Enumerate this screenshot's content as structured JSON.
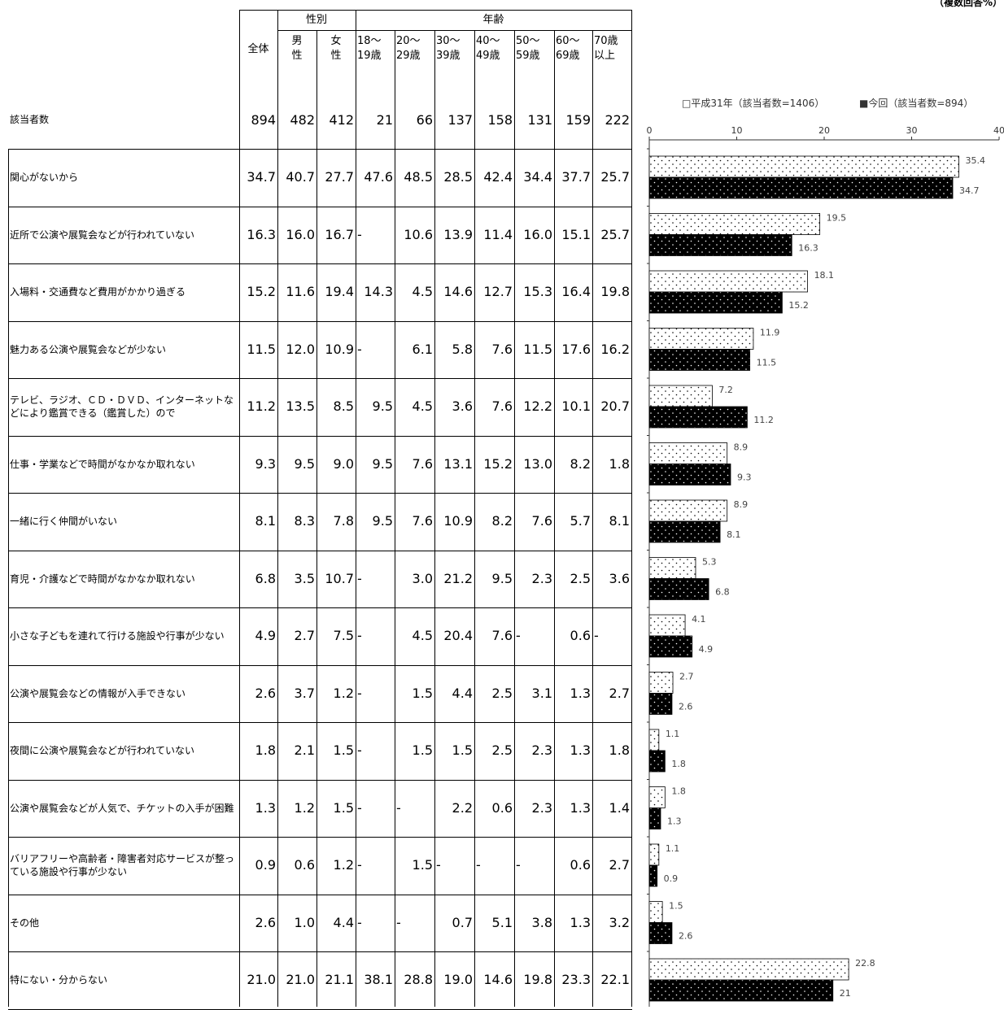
{
  "note": "（複数回答%）",
  "table": {
    "header_all": "全体",
    "group_gender": "性別",
    "group_age": "年齢",
    "columns": [
      {
        "top": "男",
        "bottom": "性"
      },
      {
        "top": "女",
        "bottom": "性"
      },
      {
        "top": "18～",
        "bottom": "19歳"
      },
      {
        "top": "20～",
        "bottom": "29歳"
      },
      {
        "top": "30～",
        "bottom": "39歳"
      },
      {
        "top": "40～",
        "bottom": "49歳"
      },
      {
        "top": "50～",
        "bottom": "59歳"
      },
      {
        "top": "60～",
        "bottom": "69歳"
      },
      {
        "top": "70歳",
        "bottom": "以上"
      }
    ],
    "count_label": "該当者数",
    "counts": [
      "894",
      "482",
      "412",
      "21",
      "66",
      "137",
      "158",
      "131",
      "159",
      "222"
    ],
    "rows": [
      {
        "label": "関心がないから",
        "values": [
          "34.7",
          "40.7",
          "27.7",
          "47.6",
          "48.5",
          "28.5",
          "42.4",
          "34.4",
          "37.7",
          "25.7"
        ]
      },
      {
        "label": "近所で公演や展覧会などが行われていない",
        "values": [
          "16.3",
          "16.0",
          "16.7",
          "-",
          "10.6",
          "13.9",
          "11.4",
          "16.0",
          "15.1",
          "25.7"
        ]
      },
      {
        "label": "入場料・交通費など費用がかかり過ぎる",
        "values": [
          "15.2",
          "11.6",
          "19.4",
          "14.3",
          "4.5",
          "14.6",
          "12.7",
          "15.3",
          "16.4",
          "19.8"
        ]
      },
      {
        "label": "魅力ある公演や展覧会などが少ない",
        "values": [
          "11.5",
          "12.0",
          "10.9",
          "-",
          "6.1",
          "5.8",
          "7.6",
          "11.5",
          "17.6",
          "16.2"
        ]
      },
      {
        "label": "テレビ、ラジオ、ＣＤ・ＤＶＤ、インターネットなどにより鑑賞できる（鑑賞した）ので",
        "values": [
          "11.2",
          "13.5",
          "8.5",
          "9.5",
          "4.5",
          "3.6",
          "7.6",
          "12.2",
          "10.1",
          "20.7"
        ]
      },
      {
        "label": "仕事・学業などで時間がなかなか取れない",
        "values": [
          "9.3",
          "9.5",
          "9.0",
          "9.5",
          "7.6",
          "13.1",
          "15.2",
          "13.0",
          "8.2",
          "1.8"
        ]
      },
      {
        "label": "一緒に行く仲間がいない",
        "values": [
          "8.1",
          "8.3",
          "7.8",
          "9.5",
          "7.6",
          "10.9",
          "8.2",
          "7.6",
          "5.7",
          "8.1"
        ]
      },
      {
        "label": "育児・介護などで時間がなかなか取れない",
        "values": [
          "6.8",
          "3.5",
          "10.7",
          "-",
          "3.0",
          "21.2",
          "9.5",
          "2.3",
          "2.5",
          "3.6"
        ]
      },
      {
        "label": "小さな子どもを連れて行ける施設や行事が少ない",
        "values": [
          "4.9",
          "2.7",
          "7.5",
          "-",
          "4.5",
          "20.4",
          "7.6",
          "-",
          "0.6",
          "-"
        ]
      },
      {
        "label": "公演や展覧会などの情報が入手できない",
        "values": [
          "2.6",
          "3.7",
          "1.2",
          "-",
          "1.5",
          "4.4",
          "2.5",
          "3.1",
          "1.3",
          "2.7"
        ]
      },
      {
        "label": "夜間に公演や展覧会などが行われていない",
        "values": [
          "1.8",
          "2.1",
          "1.5",
          "-",
          "1.5",
          "1.5",
          "2.5",
          "2.3",
          "1.3",
          "1.8"
        ]
      },
      {
        "label": "公演や展覧会などが人気で、チケットの入手が困難",
        "values": [
          "1.3",
          "1.2",
          "1.5",
          "-",
          "-",
          "2.2",
          "0.6",
          "2.3",
          "1.3",
          "1.4"
        ]
      },
      {
        "label": "バリアフリーや高齢者・障害者対応サービスが整っている施設や行事が少ない",
        "values": [
          "0.9",
          "0.6",
          "1.2",
          "-",
          "1.5",
          "-",
          "-",
          "-",
          "0.6",
          "2.7"
        ]
      },
      {
        "label": "その他",
        "values": [
          "2.6",
          "1.0",
          "4.4",
          "-",
          "-",
          "0.7",
          "5.1",
          "3.8",
          "1.3",
          "3.2"
        ]
      },
      {
        "label": "特にない・分からない",
        "values": [
          "21.0",
          "21.0",
          "21.1",
          "38.1",
          "28.8",
          "19.0",
          "14.6",
          "19.8",
          "23.3",
          "22.1"
        ]
      }
    ]
  },
  "chart_data": {
    "type": "bar",
    "orientation": "horizontal",
    "categories": [
      "関心がないから",
      "近所で公演や展覧会などが行われていない",
      "入場料・交通費など費用がかかり過ぎる",
      "魅力ある公演や展覧会などが少ない",
      "テレビ、ラジオ、ＣＤ・ＤＶＤ、インターネットなどにより鑑賞できる（鑑賞した）ので",
      "仕事・学業などで時間がなかなか取れない",
      "一緒に行く仲間がいない",
      "育児・介護などで時間がなかなか取れない",
      "小さな子どもを連れて行ける施設や行事が少ない",
      "公演や展覧会などの情報が入手できない",
      "夜間に公演や展覧会などが行われていない",
      "公演や展覧会などが人気で、チケットの入手が困難",
      "バリアフリーや高齢者・障害者対応サービスが整っている施設や行事が少ない",
      "その他",
      "特にない・分からない"
    ],
    "series": [
      {
        "name": "平成31年（該当者数=1406）",
        "style": "white-dotted",
        "values": [
          35.4,
          19.5,
          18.1,
          11.9,
          7.2,
          8.9,
          8.9,
          5.3,
          4.1,
          2.7,
          1.1,
          1.8,
          1.1,
          1.5,
          22.8
        ],
        "labels": [
          "35.4",
          "19.5",
          "18.1",
          "11.9",
          "7.2",
          "8.9",
          "8.9",
          "5.3",
          "4.1",
          "2.7",
          "1.1",
          "1.8",
          "1.1",
          "1.5",
          "22.8"
        ]
      },
      {
        "name": "今回（該当者数=894）",
        "style": "black-dotted",
        "values": [
          34.7,
          16.3,
          15.2,
          11.5,
          11.2,
          9.3,
          8.1,
          6.8,
          4.9,
          2.6,
          1.8,
          1.3,
          0.9,
          2.6,
          21
        ],
        "labels": [
          "34.7",
          "16.3",
          "15.2",
          "11.5",
          "11.2",
          "9.3",
          "8.1",
          "6.8",
          "4.9",
          "2.6",
          "1.8",
          "1.3",
          "0.9",
          "2.6",
          "21"
        ]
      }
    ],
    "xlim": [
      0,
      40
    ],
    "xticks": [
      "0",
      "10",
      "20",
      "30",
      "40"
    ],
    "legend": "top",
    "legend_markers": [
      "□",
      "■"
    ],
    "grid": false
  }
}
